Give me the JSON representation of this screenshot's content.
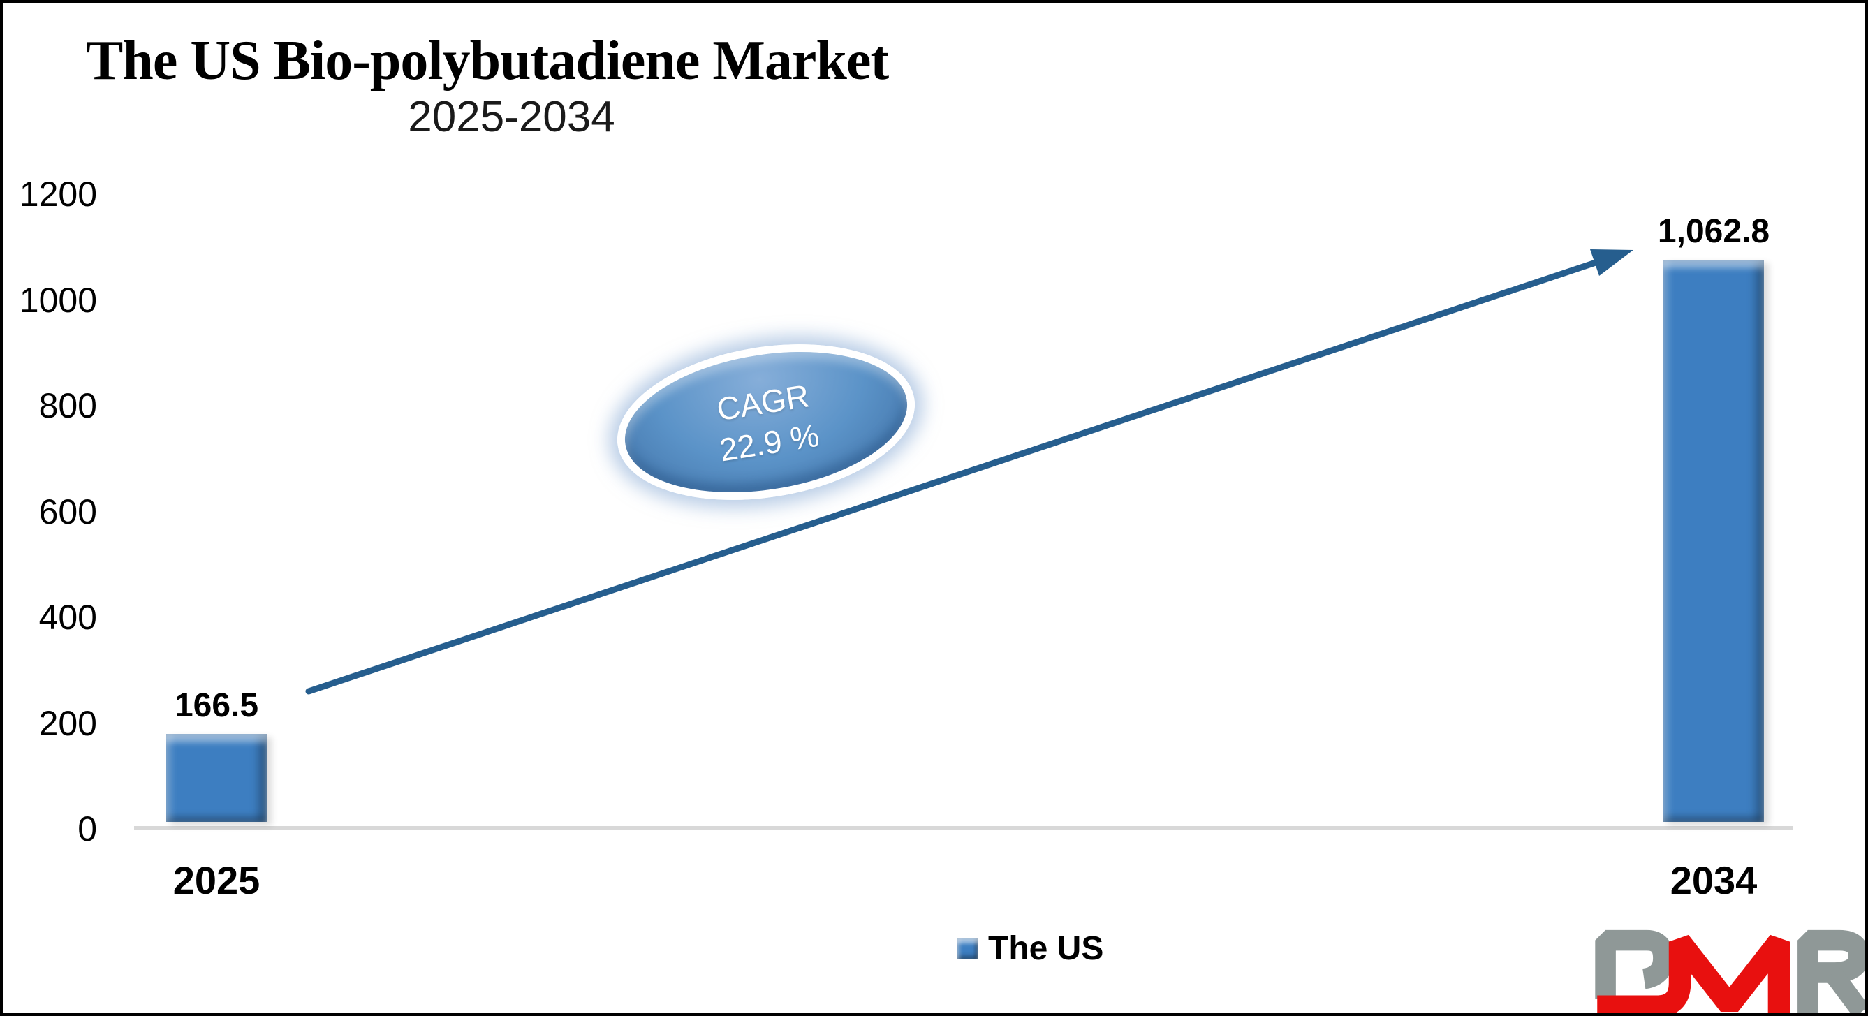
{
  "chart": {
    "title": "The US Bio-polybutadiene Market",
    "subtitle": "2025-2034"
  },
  "chart_data": {
    "type": "bar",
    "title": "The US Bio-polybutadiene Market",
    "subtitle": "2025-2034",
    "categories": [
      "2025",
      "2034"
    ],
    "series": [
      {
        "name": "The US",
        "values": [
          166.5,
          1062.8
        ]
      }
    ],
    "value_labels": [
      "166.5",
      "1,062.8"
    ],
    "xlabel": "",
    "ylabel": "",
    "ylim": [
      0,
      1200
    ],
    "yticks": [
      0,
      200,
      400,
      600,
      800,
      1000,
      1200
    ],
    "grid": false,
    "legend_position": "bottom-center",
    "annotations": [
      {
        "type": "ellipse-callout",
        "text": "CAGR 22.9 %"
      },
      {
        "type": "trend-arrow",
        "from_category": "2025",
        "to_category": "2034"
      }
    ]
  },
  "annotation": {
    "cagr_line1": "CAGR",
    "cagr_line2": "22.9 %"
  },
  "legend": {
    "label": "The US",
    "marker_color": "#3d7ec1"
  },
  "logo": {
    "text": "DMR",
    "gray": "#8f9897",
    "red": "#e8100f"
  },
  "colors": {
    "bar_fill": "#3d7ec1",
    "bar_highlight": "#7fb1e0",
    "arrow": "#265e8e",
    "ellipse_fill": "#5b93c8",
    "ellipse_ring": "#ffffff",
    "axis_line": "#d8d8d8",
    "text": "#000000",
    "frame_border": "#000000"
  }
}
